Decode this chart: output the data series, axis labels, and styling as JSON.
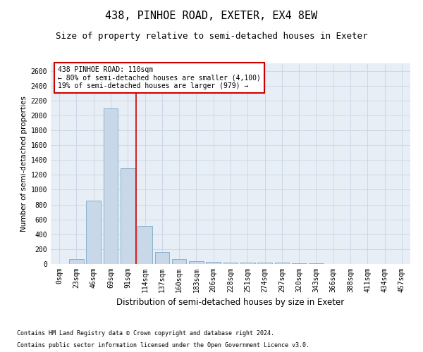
{
  "title": "438, PINHOE ROAD, EXETER, EX4 8EW",
  "subtitle": "Size of property relative to semi-detached houses in Exeter",
  "xlabel": "Distribution of semi-detached houses by size in Exeter",
  "ylabel": "Number of semi-detached properties",
  "categories": [
    "0sqm",
    "23sqm",
    "46sqm",
    "69sqm",
    "91sqm",
    "114sqm",
    "137sqm",
    "160sqm",
    "183sqm",
    "206sqm",
    "228sqm",
    "251sqm",
    "274sqm",
    "297sqm",
    "320sqm",
    "343sqm",
    "366sqm",
    "388sqm",
    "411sqm",
    "434sqm",
    "457sqm"
  ],
  "values": [
    0,
    70,
    850,
    2090,
    1290,
    510,
    160,
    70,
    40,
    30,
    20,
    20,
    15,
    20,
    10,
    5,
    3,
    2,
    1,
    1,
    1
  ],
  "bar_color": "#c8d8e8",
  "bar_edgecolor": "#7aaac8",
  "grid_color": "#c8d4e4",
  "background_color": "#e8eef5",
  "vline_x": 4.5,
  "vline_color": "#cc0000",
  "annotation_title": "438 PINHOE ROAD: 110sqm",
  "annotation_line1": "← 80% of semi-detached houses are smaller (4,100)",
  "annotation_line2": "19% of semi-detached houses are larger (979) →",
  "annotation_box_facecolor": "#ffffff",
  "annotation_box_edgecolor": "#cc0000",
  "ylim": [
    0,
    2700
  ],
  "yticks": [
    0,
    200,
    400,
    600,
    800,
    1000,
    1200,
    1400,
    1600,
    1800,
    2000,
    2200,
    2400,
    2600
  ],
  "footnote1": "Contains HM Land Registry data © Crown copyright and database right 2024.",
  "footnote2": "Contains public sector information licensed under the Open Government Licence v3.0.",
  "title_fontsize": 11,
  "subtitle_fontsize": 9,
  "xlabel_fontsize": 8.5,
  "ylabel_fontsize": 7.5,
  "tick_fontsize": 7,
  "annotation_fontsize": 7,
  "footnote_fontsize": 6
}
